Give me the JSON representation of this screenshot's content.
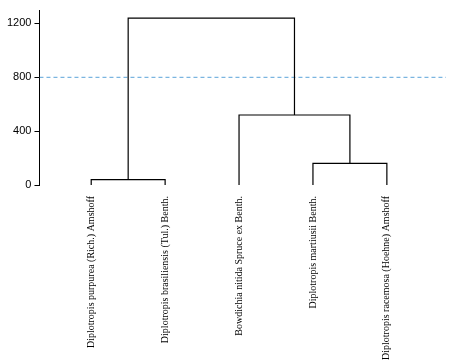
{
  "chart_data": {
    "type": "dendrogram",
    "leaves": [
      "Diplotropis purpurea (Rich.) Amshoff",
      "Diplotropis brasiliensis (Tul.) Benth.",
      "Bowdichia nitida Spruce ex Benth.",
      "Diplotropis martiusii Benth.",
      "Diplotropis racemosa (Hoehne) Amshoff"
    ],
    "merges": [
      {
        "left": 0,
        "right": 1,
        "height": 40
      },
      {
        "left": 3,
        "right": 4,
        "height": 160
      },
      {
        "left": 2,
        "right": 6,
        "height": 520
      },
      {
        "left": 5,
        "right": 7,
        "height": 1240
      }
    ],
    "threshold": {
      "value": 800,
      "color": "#5ba3d9",
      "line_style": "dashed"
    },
    "color": "#000000",
    "ylim": [
      0,
      1300
    ],
    "yticks": [
      0,
      400,
      800,
      1200
    ],
    "grid": false
  }
}
